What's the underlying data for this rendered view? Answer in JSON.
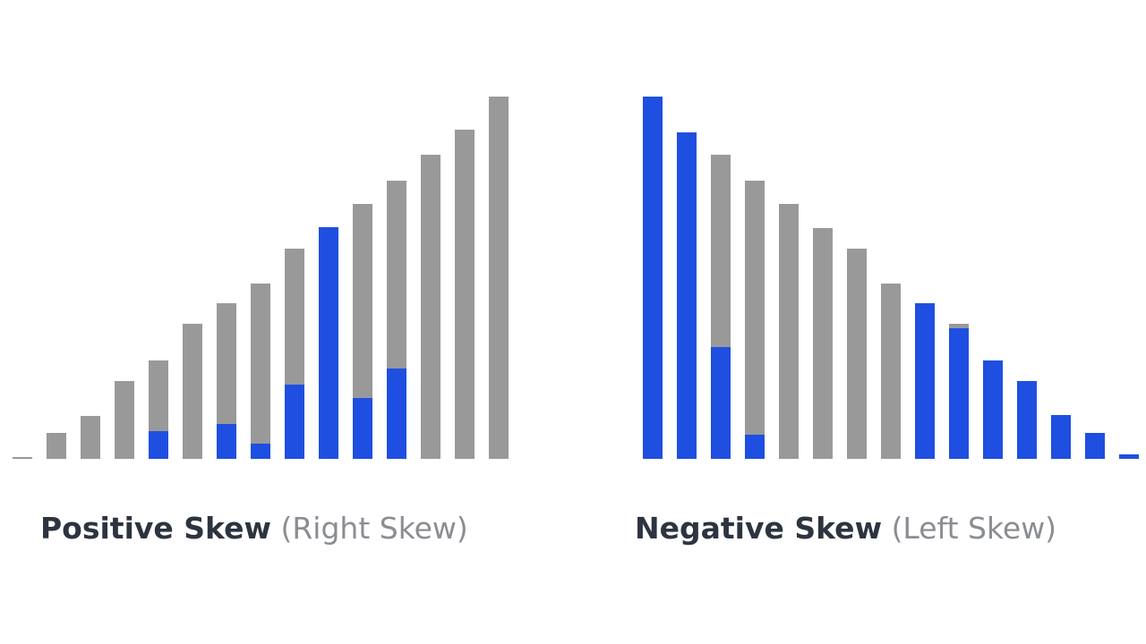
{
  "chart_data": [
    {
      "type": "bar",
      "title": "Positive Skew",
      "subtitle": "(Right Skew)",
      "ylim": [
        0,
        405
      ],
      "series": [
        {
          "color": "#999999",
          "values": [
            2,
            29,
            48,
            87,
            110,
            151,
            174,
            196,
            235,
            259,
            285,
            311,
            340,
            368,
            405
          ]
        },
        {
          "color": "#1f4fe0",
          "values": [
            null,
            null,
            null,
            null,
            31,
            null,
            39,
            17,
            83,
            259,
            68,
            101,
            null,
            null,
            null
          ]
        }
      ]
    },
    {
      "type": "bar",
      "title": "Negative Skew",
      "subtitle": "(Left Skew)",
      "ylim": [
        0,
        405
      ],
      "series": [
        {
          "color": "#999999",
          "values": [
            405,
            365,
            340,
            311,
            285,
            258,
            235,
            196,
            174,
            151,
            110,
            87,
            49,
            29,
            5
          ]
        },
        {
          "color": "#1f4fe0",
          "values": [
            405,
            365,
            125,
            27,
            null,
            null,
            null,
            null,
            174,
            146,
            110,
            87,
            49,
            29,
            5
          ]
        }
      ]
    }
  ]
}
